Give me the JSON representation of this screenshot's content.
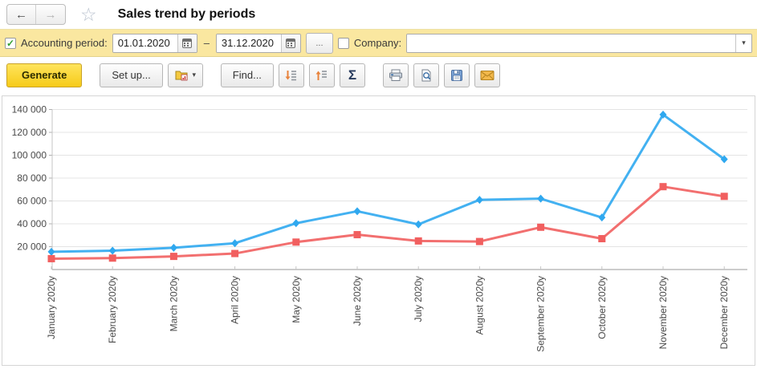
{
  "titlebar": {
    "title": "Sales trend by periods",
    "back_glyph": "←",
    "forward_glyph": "→",
    "star_glyph": "☆"
  },
  "filterbar": {
    "period_label": "Accounting period:",
    "period_checked": true,
    "check_glyph": "✓",
    "date_from": "01.01.2020",
    "date_to": "31.12.2020",
    "dash": "–",
    "more_label": "...",
    "company_checked": false,
    "company_label": "Company:",
    "company_value": "",
    "dropdown_glyph": "▾"
  },
  "toolbar": {
    "generate_label": "Generate",
    "setup_label": "Set up...",
    "find_label": "Find...",
    "sigma_label": "Σ",
    "caret_glyph": "▾"
  },
  "colors": {
    "filter_bar_bg": "#FAE7A0",
    "generate_yellow": "#F6CB18",
    "series_blue": "#2FA8EF",
    "series_red": "#F15F5F",
    "check_green": "#2F9E2F"
  },
  "chart_data": {
    "type": "line",
    "title": "",
    "xlabel": "",
    "ylabel": "",
    "categories": [
      "January 2020y",
      "February 2020y",
      "March 2020y",
      "April 2020y",
      "May 2020y",
      "June 2020y",
      "July 2020y",
      "August 2020y",
      "September 2020y",
      "October 2020y",
      "November 2020y",
      "December 2020y"
    ],
    "series": [
      {
        "name": "series-1-blue",
        "color": "#2FA8EF",
        "marker": "diamond",
        "values": [
          15500,
          16500,
          19000,
          23000,
          40500,
          51000,
          39500,
          61000,
          62000,
          45500,
          135500,
          96500
        ]
      },
      {
        "name": "series-2-red",
        "color": "#F15F5F",
        "marker": "square",
        "values": [
          9500,
          10000,
          11500,
          14000,
          24000,
          30500,
          25000,
          24500,
          37000,
          27000,
          72500,
          64000
        ]
      }
    ],
    "ylim": [
      0,
      140000
    ],
    "ytick_step": 20000,
    "ytick_labels": [
      "20 000",
      "40 000",
      "60 000",
      "80 000",
      "100 000",
      "120 000",
      "140 000"
    ],
    "grid": true,
    "legend_position": "none"
  }
}
